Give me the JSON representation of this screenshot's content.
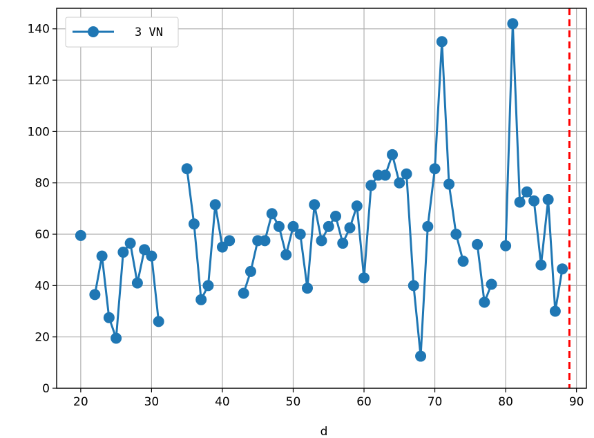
{
  "chart_data": {
    "type": "line",
    "xlabel": "d",
    "ylabel": "",
    "title": "",
    "xlim": [
      16.6,
      91.4
    ],
    "ylim": [
      0,
      148
    ],
    "xticks": [
      20,
      30,
      40,
      50,
      60,
      70,
      80,
      90
    ],
    "yticks": [
      0,
      20,
      40,
      60,
      80,
      100,
      120,
      140
    ],
    "grid": true,
    "legend_position": "top-left",
    "series": [
      {
        "name": "3 VN",
        "color": "#1f77b4",
        "marker": "circle",
        "segments": [
          {
            "x": [
              20
            ],
            "y": [
              59.5
            ]
          },
          {
            "x": [
              22,
              23,
              24,
              25,
              26,
              27,
              28,
              29,
              30,
              31
            ],
            "y": [
              36.5,
              51.5,
              27.5,
              19.5,
              53,
              56.5,
              41,
              54,
              51.5,
              26
            ]
          },
          {
            "x": [
              35,
              36,
              37,
              38,
              39,
              40,
              41
            ],
            "y": [
              85.5,
              64,
              34.5,
              40,
              71.5,
              55,
              57.5
            ]
          },
          {
            "x": [
              43,
              44,
              45,
              46,
              47,
              48,
              49,
              50,
              51,
              52,
              53,
              54,
              55,
              56,
              57,
              58,
              59,
              60,
              61,
              62,
              63,
              64,
              65,
              66,
              67,
              68,
              69,
              70,
              71,
              72,
              73,
              74
            ],
            "y": [
              37,
              45.5,
              57.5,
              57.5,
              68,
              63,
              52,
              63,
              60,
              39,
              71.5,
              57.5,
              63,
              67,
              56.5,
              62.5,
              71,
              43,
              79,
              83,
              83,
              91,
              80,
              83.5,
              40,
              12.5,
              63,
              85.5,
              135,
              79.5,
              60,
              49.5
            ]
          },
          {
            "x": [
              76,
              77,
              78
            ],
            "y": [
              56,
              33.5,
              40.5
            ]
          },
          {
            "x": [
              80,
              81,
              82,
              83,
              84,
              85,
              86,
              87,
              88
            ],
            "y": [
              55.5,
              142,
              72.5,
              76.5,
              73,
              48,
              73.5,
              30,
              46.5
            ]
          }
        ]
      }
    ],
    "vline": {
      "x": 89,
      "color": "#ff0000",
      "style": "dashed"
    }
  }
}
